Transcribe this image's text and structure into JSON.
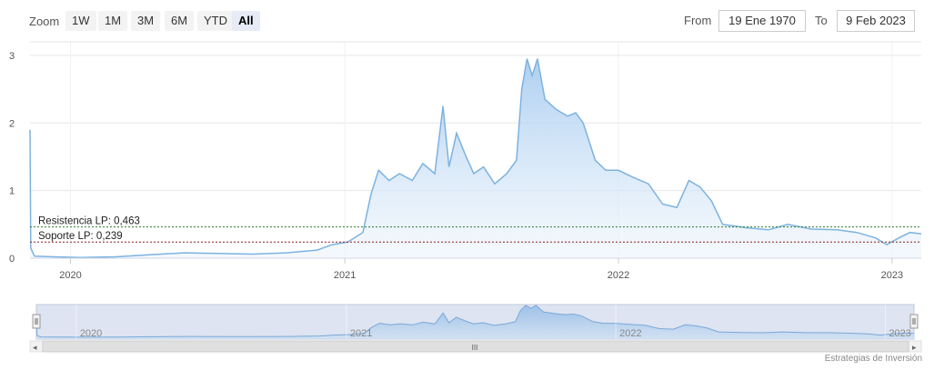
{
  "toolbar": {
    "zoom_label": "Zoom",
    "buttons": [
      "1W",
      "1M",
      "3M",
      "6M",
      "YTD",
      "All"
    ],
    "active": "All",
    "from_label": "From",
    "from_value": "19 Ene 1970",
    "to_label": "To",
    "to_value": "9 Feb 2023"
  },
  "credits": "Estrategias de Inversión",
  "navigator": {
    "year_labels": [
      "2020",
      "2021",
      "2022",
      "2023"
    ],
    "scrollbar_grip": "III"
  },
  "chart_data": {
    "type": "area",
    "title": "",
    "xlabel": "",
    "ylabel": "",
    "ylim": [
      0,
      3.2
    ],
    "y_ticks": [
      0,
      1,
      2,
      3
    ],
    "x_ticks": [
      "2020",
      "2021",
      "2022",
      "2023"
    ],
    "x_tick_dates": [
      "2020-01-01",
      "2021-01-01",
      "2022-01-01",
      "2023-01-01"
    ],
    "grid": true,
    "series": [
      {
        "values": [
          [
            "2019-11-08",
            1.9
          ],
          [
            "2019-11-09",
            0.15
          ],
          [
            "2019-11-14",
            0.03
          ],
          [
            "2019-12-10",
            0.02
          ],
          [
            "2020-01-15",
            0.01
          ],
          [
            "2020-03-01",
            0.02
          ],
          [
            "2020-04-15",
            0.05
          ],
          [
            "2020-06-01",
            0.08
          ],
          [
            "2020-07-15",
            0.07
          ],
          [
            "2020-09-01",
            0.06
          ],
          [
            "2020-10-15",
            0.08
          ],
          [
            "2020-11-25",
            0.12
          ],
          [
            "2020-12-15",
            0.2
          ],
          [
            "2021-01-05",
            0.24
          ],
          [
            "2021-01-25",
            0.38
          ],
          [
            "2021-02-05",
            0.95
          ],
          [
            "2021-02-15",
            1.3
          ],
          [
            "2021-03-01",
            1.15
          ],
          [
            "2021-03-15",
            1.25
          ],
          [
            "2021-04-01",
            1.15
          ],
          [
            "2021-04-15",
            1.4
          ],
          [
            "2021-05-01",
            1.25
          ],
          [
            "2021-05-12",
            2.25
          ],
          [
            "2021-05-20",
            1.35
          ],
          [
            "2021-05-30",
            1.85
          ],
          [
            "2021-06-10",
            1.55
          ],
          [
            "2021-06-22",
            1.25
          ],
          [
            "2021-07-05",
            1.35
          ],
          [
            "2021-07-20",
            1.1
          ],
          [
            "2021-08-05",
            1.25
          ],
          [
            "2021-08-18",
            1.45
          ],
          [
            "2021-08-25",
            2.5
          ],
          [
            "2021-09-01",
            2.95
          ],
          [
            "2021-09-08",
            2.7
          ],
          [
            "2021-09-15",
            2.95
          ],
          [
            "2021-09-25",
            2.35
          ],
          [
            "2021-10-10",
            2.2
          ],
          [
            "2021-10-25",
            2.1
          ],
          [
            "2021-11-05",
            2.15
          ],
          [
            "2021-11-15",
            2.0
          ],
          [
            "2021-12-01",
            1.45
          ],
          [
            "2021-12-15",
            1.3
          ],
          [
            "2022-01-01",
            1.3
          ],
          [
            "2022-01-20",
            1.2
          ],
          [
            "2022-02-10",
            1.1
          ],
          [
            "2022-03-01",
            0.8
          ],
          [
            "2022-03-20",
            0.75
          ],
          [
            "2022-04-05",
            1.15
          ],
          [
            "2022-04-20",
            1.05
          ],
          [
            "2022-05-05",
            0.85
          ],
          [
            "2022-05-20",
            0.5
          ],
          [
            "2022-06-20",
            0.45
          ],
          [
            "2022-07-20",
            0.42
          ],
          [
            "2022-08-15",
            0.5
          ],
          [
            "2022-09-15",
            0.43
          ],
          [
            "2022-10-20",
            0.42
          ],
          [
            "2022-11-15",
            0.38
          ],
          [
            "2022-12-10",
            0.3
          ],
          [
            "2022-12-25",
            0.2
          ],
          [
            "2023-01-10",
            0.3
          ],
          [
            "2023-01-25",
            0.38
          ],
          [
            "2023-02-09",
            0.36
          ]
        ]
      }
    ],
    "x_range": [
      "2019-11-08",
      "2023-02-09"
    ],
    "colors": {
      "line": "#7db2df",
      "fill_top": "#a9cdf0",
      "fill_bottom": "#eef5fc",
      "grid": "#e6e6e6"
    },
    "annotations": [
      {
        "label": "Resistencia LP: 0,463",
        "value": 0.463,
        "color": "#2e7d32",
        "style": "dashed"
      },
      {
        "label": "Soporte LP: 0,239",
        "value": 0.239,
        "color": "#8b1e1e",
        "style": "dashed"
      }
    ]
  }
}
